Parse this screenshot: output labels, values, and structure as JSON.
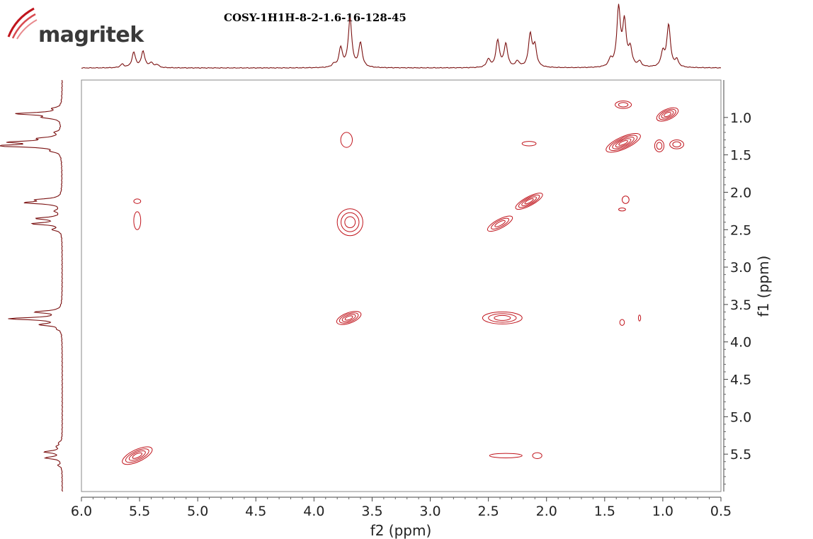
{
  "logo_text": "magritek",
  "chart_data": {
    "type": "contour",
    "title": "COSY-1H1H-8-2-1.6-16-128-45",
    "xlabel": "f2 (ppm)",
    "ylabel": "f1 (ppm)",
    "xlim": [
      6.0,
      0.5
    ],
    "ylim": [
      0.5,
      6.0
    ],
    "x_ticks": [
      "6.0",
      "5.5",
      "5.0",
      "4.5",
      "4.0",
      "3.5",
      "3.0",
      "2.5",
      "2.0",
      "1.5",
      "1.0",
      "0.5"
    ],
    "y_ticks": [
      "1.0",
      "1.5",
      "2.0",
      "2.5",
      "3.0",
      "3.5",
      "4.0",
      "4.5",
      "5.0",
      "5.5"
    ],
    "color": "#c0141c",
    "projection_color": "#7a1010",
    "peaks_1d": [
      {
        "ppm": 5.55,
        "height": 0.26
      },
      {
        "ppm": 5.47,
        "height": 0.28
      },
      {
        "ppm": 5.4,
        "height": 0.08
      },
      {
        "ppm": 5.65,
        "height": 0.06
      },
      {
        "ppm": 5.35,
        "height": 0.05
      },
      {
        "ppm": 3.77,
        "height": 0.33
      },
      {
        "ppm": 3.69,
        "height": 0.84
      },
      {
        "ppm": 3.6,
        "height": 0.42
      },
      {
        "ppm": 3.83,
        "height": 0.05
      },
      {
        "ppm": 2.42,
        "height": 0.46
      },
      {
        "ppm": 2.35,
        "height": 0.4
      },
      {
        "ppm": 2.5,
        "height": 0.14
      },
      {
        "ppm": 2.25,
        "height": 0.1
      },
      {
        "ppm": 2.14,
        "height": 0.56
      },
      {
        "ppm": 2.1,
        "height": 0.35
      },
      {
        "ppm": 1.38,
        "height": 1.0
      },
      {
        "ppm": 1.33,
        "height": 0.75
      },
      {
        "ppm": 1.28,
        "height": 0.3
      },
      {
        "ppm": 1.2,
        "height": 0.09
      },
      {
        "ppm": 1.45,
        "height": 0.12
      },
      {
        "ppm": 1.0,
        "height": 0.25
      },
      {
        "ppm": 0.95,
        "height": 0.73
      },
      {
        "ppm": 0.88,
        "height": 0.12
      }
    ],
    "cross_peaks": [
      {
        "f2": 5.52,
        "f1": 5.52,
        "rx": 0.14,
        "ry": 0.08,
        "levels": 4,
        "tilt": 25
      },
      {
        "f2": 3.7,
        "f1": 3.68,
        "rx": 0.11,
        "ry": 0.07,
        "levels": 4,
        "tilt": 20
      },
      {
        "f2": 2.15,
        "f1": 2.12,
        "rx": 0.13,
        "ry": 0.06,
        "levels": 4,
        "tilt": 28
      },
      {
        "f2": 2.4,
        "f1": 2.42,
        "rx": 0.12,
        "ry": 0.06,
        "levels": 3,
        "tilt": 28
      },
      {
        "f2": 1.34,
        "f1": 1.34,
        "rx": 0.16,
        "ry": 0.08,
        "levels": 5,
        "tilt": 24
      },
      {
        "f2": 0.96,
        "f1": 0.96,
        "rx": 0.1,
        "ry": 0.07,
        "levels": 4,
        "tilt": 24
      },
      {
        "f2": 3.69,
        "f1": 2.4,
        "rx": 0.11,
        "ry": 0.18,
        "levels": 3,
        "tilt": 0
      },
      {
        "f2": 2.38,
        "f1": 3.68,
        "rx": 0.17,
        "ry": 0.08,
        "levels": 3,
        "tilt": 0
      },
      {
        "f2": 5.52,
        "f1": 2.38,
        "rx": 0.03,
        "ry": 0.12,
        "levels": 1,
        "tilt": 0
      },
      {
        "f2": 5.52,
        "f1": 2.12,
        "rx": 0.03,
        "ry": 0.03,
        "levels": 1,
        "tilt": 0
      },
      {
        "f2": 2.35,
        "f1": 5.52,
        "rx": 0.14,
        "ry": 0.03,
        "levels": 1,
        "tilt": 0
      },
      {
        "f2": 2.08,
        "f1": 5.52,
        "rx": 0.04,
        "ry": 0.04,
        "levels": 1,
        "tilt": 0
      },
      {
        "f2": 1.32,
        "f1": 2.1,
        "rx": 0.03,
        "ry": 0.05,
        "levels": 1,
        "tilt": 0
      },
      {
        "f2": 1.35,
        "f1": 2.23,
        "rx": 0.03,
        "ry": 0.02,
        "levels": 1,
        "tilt": 0
      },
      {
        "f2": 0.88,
        "f1": 1.36,
        "rx": 0.06,
        "ry": 0.06,
        "levels": 2,
        "tilt": 0
      },
      {
        "f2": 1.03,
        "f1": 1.38,
        "rx": 0.04,
        "ry": 0.08,
        "levels": 2,
        "tilt": 0
      },
      {
        "f2": 1.34,
        "f1": 0.83,
        "rx": 0.07,
        "ry": 0.05,
        "levels": 2,
        "tilt": 0
      },
      {
        "f2": 2.15,
        "f1": 1.35,
        "rx": 0.06,
        "ry": 0.03,
        "levels": 1,
        "tilt": 0
      },
      {
        "f2": 1.35,
        "f1": 3.74,
        "rx": 0.02,
        "ry": 0.04,
        "levels": 1,
        "tilt": 0
      },
      {
        "f2": 1.2,
        "f1": 3.68,
        "rx": 0.01,
        "ry": 0.04,
        "levels": 1,
        "tilt": 0
      },
      {
        "f2": 3.72,
        "f1": 1.3,
        "rx": 0.05,
        "ry": 0.1,
        "levels": 1,
        "tilt": 0
      }
    ]
  }
}
